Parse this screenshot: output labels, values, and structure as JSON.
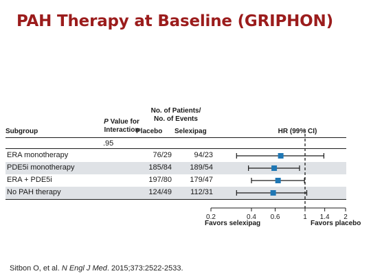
{
  "title": "PAH Therapy at Baseline (GRIPHON)",
  "headers": {
    "subgroup": "Subgroup",
    "pvalue_prefix": "P",
    "pvalue_line1": " Value for",
    "pvalue_line2": "Interaction",
    "npe_line1": "No. of Patients/",
    "npe_line2": "No. of Events",
    "placebo": "Placebo",
    "selexipag": "Selexipag",
    "hr": "HR (99% CI)"
  },
  "pvalue": ".95",
  "rows": [
    {
      "subgroup": "ERA monotherapy",
      "placebo": "76/29",
      "selexipag": "94/23"
    },
    {
      "subgroup": "PDE5i monotherapy",
      "placebo": "185/84",
      "selexipag": "189/54"
    },
    {
      "subgroup": "ERA + PDE5i",
      "placebo": "197/80",
      "selexipag": "179/47"
    },
    {
      "subgroup": "No PAH therapy",
      "placebo": "124/49",
      "selexipag": "112/31"
    }
  ],
  "favors_left": "Favors selexipag",
  "favors_right": "Favors placebo",
  "citation": {
    "authors": "Sitbon O, et al. ",
    "journal": "N Engl J Med",
    "rest": ". 2015;373:2522-2533."
  },
  "colors": {
    "title": "#9b1c1c",
    "marker": "#1f77b4",
    "row_shade": "#dfe2e6"
  },
  "chart_data": {
    "type": "forest",
    "scale": "log",
    "xlim": [
      0.2,
      2
    ],
    "xticks": [
      0.2,
      0.4,
      0.6,
      1,
      1.4,
      2
    ],
    "xtick_labels": [
      "0.2",
      "0.4",
      "0.6",
      "1",
      "1.4",
      "2"
    ],
    "reference_line": 1,
    "categories": [
      "ERA monotherapy",
      "PDE5i monotherapy",
      "ERA + PDE5i",
      "No PAH therapy"
    ],
    "hr": [
      0.66,
      0.59,
      0.63,
      0.58
    ],
    "ci_low": [
      0.31,
      0.38,
      0.4,
      0.31
    ],
    "ci_high": [
      1.38,
      0.91,
      0.99,
      1.03
    ]
  }
}
